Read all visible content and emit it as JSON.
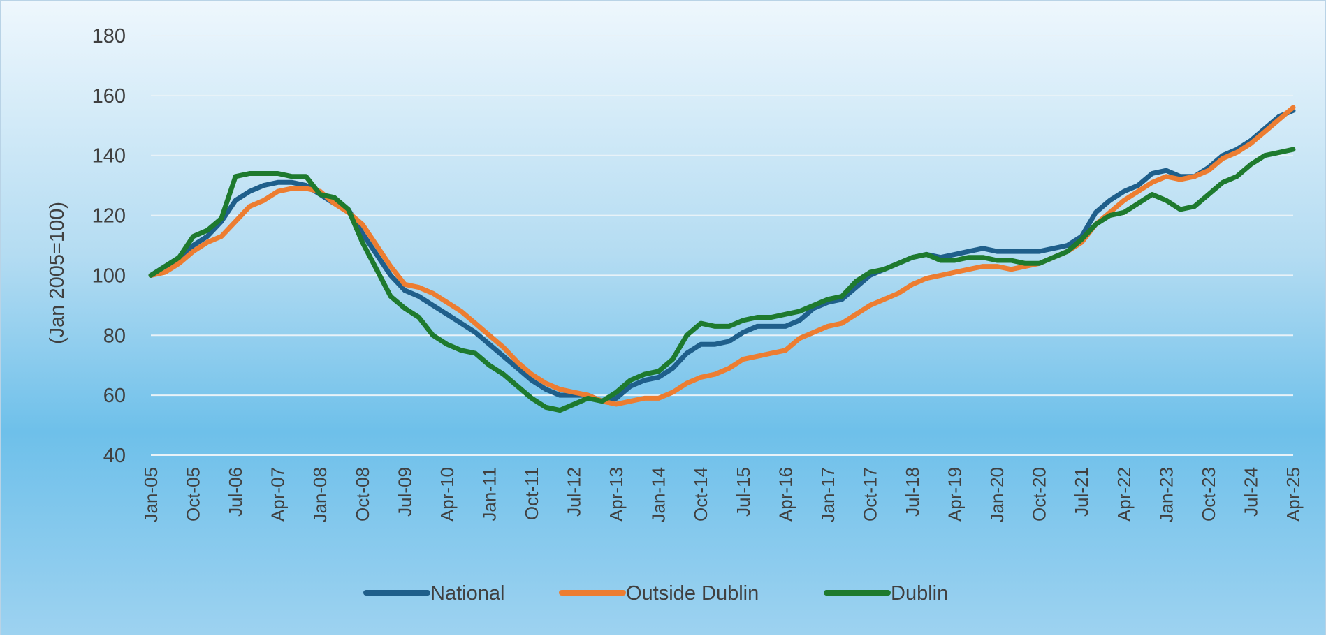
{
  "chart_data": {
    "type": "line",
    "title": "",
    "xlabel": "",
    "ylabel": "(Jan 2005=100)",
    "ylim": [
      40,
      180
    ],
    "yticks": [
      40,
      60,
      80,
      100,
      120,
      140,
      160,
      180
    ],
    "grid": true,
    "legend_position": "bottom",
    "x_start": "Jan-05",
    "x_end": "Apr-25",
    "x_tick_labels": [
      "Jan-05",
      "Oct-05",
      "Jul-06",
      "Apr-07",
      "Jan-08",
      "Oct-08",
      "Jul-09",
      "Apr-10",
      "Jan-11",
      "Oct-11",
      "Jul-12",
      "Apr-13",
      "Jan-14",
      "Oct-14",
      "Jul-15",
      "Apr-16",
      "Jan-17",
      "Oct-17",
      "Jul-18",
      "Apr-19",
      "Jan-20",
      "Oct-20",
      "Jul-21",
      "Apr-22",
      "Jan-23",
      "Oct-23",
      "Jul-24",
      "Apr-25"
    ],
    "series": [
      {
        "name": "National",
        "color": "#1f5f8b",
        "points": [
          [
            "Jan-05",
            100
          ],
          [
            "Apr-05",
            103
          ],
          [
            "Jul-05",
            105
          ],
          [
            "Oct-05",
            110
          ],
          [
            "Jan-06",
            113
          ],
          [
            "Apr-06",
            118
          ],
          [
            "Jul-06",
            125
          ],
          [
            "Oct-06",
            128
          ],
          [
            "Jan-07",
            130
          ],
          [
            "Apr-07",
            131
          ],
          [
            "Jul-07",
            131
          ],
          [
            "Oct-07",
            130
          ],
          [
            "Jan-08",
            127
          ],
          [
            "Apr-08",
            124
          ],
          [
            "Jul-08",
            122
          ],
          [
            "Oct-08",
            114
          ],
          [
            "Jan-09",
            107
          ],
          [
            "Apr-09",
            100
          ],
          [
            "Jul-09",
            95
          ],
          [
            "Oct-09",
            93
          ],
          [
            "Jan-10",
            90
          ],
          [
            "Apr-10",
            87
          ],
          [
            "Jul-10",
            84
          ],
          [
            "Oct-10",
            81
          ],
          [
            "Jan-11",
            77
          ],
          [
            "Apr-11",
            73
          ],
          [
            "Jul-11",
            69
          ],
          [
            "Oct-11",
            65
          ],
          [
            "Jan-12",
            62
          ],
          [
            "Apr-12",
            60
          ],
          [
            "Jul-12",
            60
          ],
          [
            "Oct-12",
            60
          ],
          [
            "Jan-13",
            58
          ],
          [
            "Apr-13",
            59
          ],
          [
            "Jul-13",
            63
          ],
          [
            "Oct-13",
            65
          ],
          [
            "Jan-14",
            66
          ],
          [
            "Apr-14",
            69
          ],
          [
            "Jul-14",
            74
          ],
          [
            "Oct-14",
            77
          ],
          [
            "Jan-15",
            77
          ],
          [
            "Apr-15",
            78
          ],
          [
            "Jul-15",
            81
          ],
          [
            "Oct-15",
            83
          ],
          [
            "Jan-16",
            83
          ],
          [
            "Apr-16",
            83
          ],
          [
            "Jul-16",
            85
          ],
          [
            "Oct-16",
            89
          ],
          [
            "Jan-17",
            91
          ],
          [
            "Apr-17",
            92
          ],
          [
            "Jul-17",
            96
          ],
          [
            "Oct-17",
            100
          ],
          [
            "Jan-18",
            102
          ],
          [
            "Apr-18",
            104
          ],
          [
            "Jul-18",
            106
          ],
          [
            "Oct-18",
            107
          ],
          [
            "Jan-19",
            106
          ],
          [
            "Apr-19",
            107
          ],
          [
            "Jul-19",
            108
          ],
          [
            "Oct-19",
            109
          ],
          [
            "Jan-20",
            108
          ],
          [
            "Apr-20",
            108
          ],
          [
            "Jul-20",
            108
          ],
          [
            "Oct-20",
            108
          ],
          [
            "Jan-21",
            109
          ],
          [
            "Apr-21",
            110
          ],
          [
            "Jul-21",
            113
          ],
          [
            "Oct-21",
            121
          ],
          [
            "Jan-22",
            125
          ],
          [
            "Apr-22",
            128
          ],
          [
            "Jul-22",
            130
          ],
          [
            "Oct-22",
            134
          ],
          [
            "Jan-23",
            135
          ],
          [
            "Apr-23",
            133
          ],
          [
            "Jul-23",
            133
          ],
          [
            "Oct-23",
            136
          ],
          [
            "Jan-24",
            140
          ],
          [
            "Apr-24",
            142
          ],
          [
            "Jul-24",
            145
          ],
          [
            "Oct-24",
            149
          ],
          [
            "Jan-25",
            153
          ],
          [
            "Apr-25",
            155
          ]
        ]
      },
      {
        "name": "Outside Dublin",
        "color": "#ed7d31",
        "points": [
          [
            "Jan-05",
            100
          ],
          [
            "Apr-05",
            101
          ],
          [
            "Jul-05",
            104
          ],
          [
            "Oct-05",
            108
          ],
          [
            "Jan-06",
            111
          ],
          [
            "Apr-06",
            113
          ],
          [
            "Jul-06",
            118
          ],
          [
            "Oct-06",
            123
          ],
          [
            "Jan-07",
            125
          ],
          [
            "Apr-07",
            128
          ],
          [
            "Jul-07",
            129
          ],
          [
            "Oct-07",
            129
          ],
          [
            "Jan-08",
            128
          ],
          [
            "Apr-08",
            124
          ],
          [
            "Jul-08",
            121
          ],
          [
            "Oct-08",
            117
          ],
          [
            "Jan-09",
            110
          ],
          [
            "Apr-09",
            103
          ],
          [
            "Jul-09",
            97
          ],
          [
            "Oct-09",
            96
          ],
          [
            "Jan-10",
            94
          ],
          [
            "Apr-10",
            91
          ],
          [
            "Jul-10",
            88
          ],
          [
            "Oct-10",
            84
          ],
          [
            "Jan-11",
            80
          ],
          [
            "Apr-11",
            76
          ],
          [
            "Jul-11",
            71
          ],
          [
            "Oct-11",
            67
          ],
          [
            "Jan-12",
            64
          ],
          [
            "Apr-12",
            62
          ],
          [
            "Jul-12",
            61
          ],
          [
            "Oct-12",
            60
          ],
          [
            "Jan-13",
            58
          ],
          [
            "Apr-13",
            57
          ],
          [
            "Jul-13",
            58
          ],
          [
            "Oct-13",
            59
          ],
          [
            "Jan-14",
            59
          ],
          [
            "Apr-14",
            61
          ],
          [
            "Jul-14",
            64
          ],
          [
            "Oct-14",
            66
          ],
          [
            "Jan-15",
            67
          ],
          [
            "Apr-15",
            69
          ],
          [
            "Jul-15",
            72
          ],
          [
            "Oct-15",
            73
          ],
          [
            "Jan-16",
            74
          ],
          [
            "Apr-16",
            75
          ],
          [
            "Jul-16",
            79
          ],
          [
            "Oct-16",
            81
          ],
          [
            "Jan-17",
            83
          ],
          [
            "Apr-17",
            84
          ],
          [
            "Jul-17",
            87
          ],
          [
            "Oct-17",
            90
          ],
          [
            "Jan-18",
            92
          ],
          [
            "Apr-18",
            94
          ],
          [
            "Jul-18",
            97
          ],
          [
            "Oct-18",
            99
          ],
          [
            "Jan-19",
            100
          ],
          [
            "Apr-19",
            101
          ],
          [
            "Jul-19",
            102
          ],
          [
            "Oct-19",
            103
          ],
          [
            "Jan-20",
            103
          ],
          [
            "Apr-20",
            102
          ],
          [
            "Jul-20",
            103
          ],
          [
            "Oct-20",
            104
          ],
          [
            "Jan-21",
            106
          ],
          [
            "Apr-21",
            108
          ],
          [
            "Jul-21",
            111
          ],
          [
            "Oct-21",
            117
          ],
          [
            "Jan-22",
            121
          ],
          [
            "Apr-22",
            125
          ],
          [
            "Jul-22",
            128
          ],
          [
            "Oct-22",
            131
          ],
          [
            "Jan-23",
            133
          ],
          [
            "Apr-23",
            132
          ],
          [
            "Jul-23",
            133
          ],
          [
            "Oct-23",
            135
          ],
          [
            "Jan-24",
            139
          ],
          [
            "Apr-24",
            141
          ],
          [
            "Jul-24",
            144
          ],
          [
            "Oct-24",
            148
          ],
          [
            "Jan-25",
            152
          ],
          [
            "Apr-25",
            156
          ]
        ]
      },
      {
        "name": "Dublin",
        "color": "#1e7a2e",
        "points": [
          [
            "Jan-05",
            100
          ],
          [
            "Apr-05",
            103
          ],
          [
            "Jul-05",
            106
          ],
          [
            "Oct-05",
            113
          ],
          [
            "Jan-06",
            115
          ],
          [
            "Apr-06",
            119
          ],
          [
            "Jul-06",
            133
          ],
          [
            "Oct-06",
            134
          ],
          [
            "Jan-07",
            134
          ],
          [
            "Apr-07",
            134
          ],
          [
            "Jul-07",
            133
          ],
          [
            "Oct-07",
            133
          ],
          [
            "Jan-08",
            127
          ],
          [
            "Apr-08",
            126
          ],
          [
            "Jul-08",
            122
          ],
          [
            "Oct-08",
            111
          ],
          [
            "Jan-09",
            102
          ],
          [
            "Apr-09",
            93
          ],
          [
            "Jul-09",
            89
          ],
          [
            "Oct-09",
            86
          ],
          [
            "Jan-10",
            80
          ],
          [
            "Apr-10",
            77
          ],
          [
            "Jul-10",
            75
          ],
          [
            "Oct-10",
            74
          ],
          [
            "Jan-11",
            70
          ],
          [
            "Apr-11",
            67
          ],
          [
            "Jul-11",
            63
          ],
          [
            "Oct-11",
            59
          ],
          [
            "Jan-12",
            56
          ],
          [
            "Apr-12",
            55
          ],
          [
            "Jul-12",
            57
          ],
          [
            "Oct-12",
            59
          ],
          [
            "Jan-13",
            58
          ],
          [
            "Apr-13",
            61
          ],
          [
            "Jul-13",
            65
          ],
          [
            "Oct-13",
            67
          ],
          [
            "Jan-14",
            68
          ],
          [
            "Apr-14",
            72
          ],
          [
            "Jul-14",
            80
          ],
          [
            "Oct-14",
            84
          ],
          [
            "Jan-15",
            83
          ],
          [
            "Apr-15",
            83
          ],
          [
            "Jul-15",
            85
          ],
          [
            "Oct-15",
            86
          ],
          [
            "Jan-16",
            86
          ],
          [
            "Apr-16",
            87
          ],
          [
            "Jul-16",
            88
          ],
          [
            "Oct-16",
            90
          ],
          [
            "Jan-17",
            92
          ],
          [
            "Apr-17",
            93
          ],
          [
            "Jul-17",
            98
          ],
          [
            "Oct-17",
            101
          ],
          [
            "Jan-18",
            102
          ],
          [
            "Apr-18",
            104
          ],
          [
            "Jul-18",
            106
          ],
          [
            "Oct-18",
            107
          ],
          [
            "Jan-19",
            105
          ],
          [
            "Apr-19",
            105
          ],
          [
            "Jul-19",
            106
          ],
          [
            "Oct-19",
            106
          ],
          [
            "Jan-20",
            105
          ],
          [
            "Apr-20",
            105
          ],
          [
            "Jul-20",
            104
          ],
          [
            "Oct-20",
            104
          ],
          [
            "Jan-21",
            106
          ],
          [
            "Apr-21",
            108
          ],
          [
            "Jul-21",
            112
          ],
          [
            "Oct-21",
            117
          ],
          [
            "Jan-22",
            120
          ],
          [
            "Apr-22",
            121
          ],
          [
            "Jul-22",
            124
          ],
          [
            "Oct-22",
            127
          ],
          [
            "Jan-23",
            125
          ],
          [
            "Apr-23",
            122
          ],
          [
            "Jul-23",
            123
          ],
          [
            "Oct-23",
            127
          ],
          [
            "Jan-24",
            131
          ],
          [
            "Apr-24",
            133
          ],
          [
            "Jul-24",
            137
          ],
          [
            "Oct-24",
            140
          ],
          [
            "Jan-25",
            141
          ],
          [
            "Apr-25",
            142
          ]
        ]
      }
    ]
  }
}
